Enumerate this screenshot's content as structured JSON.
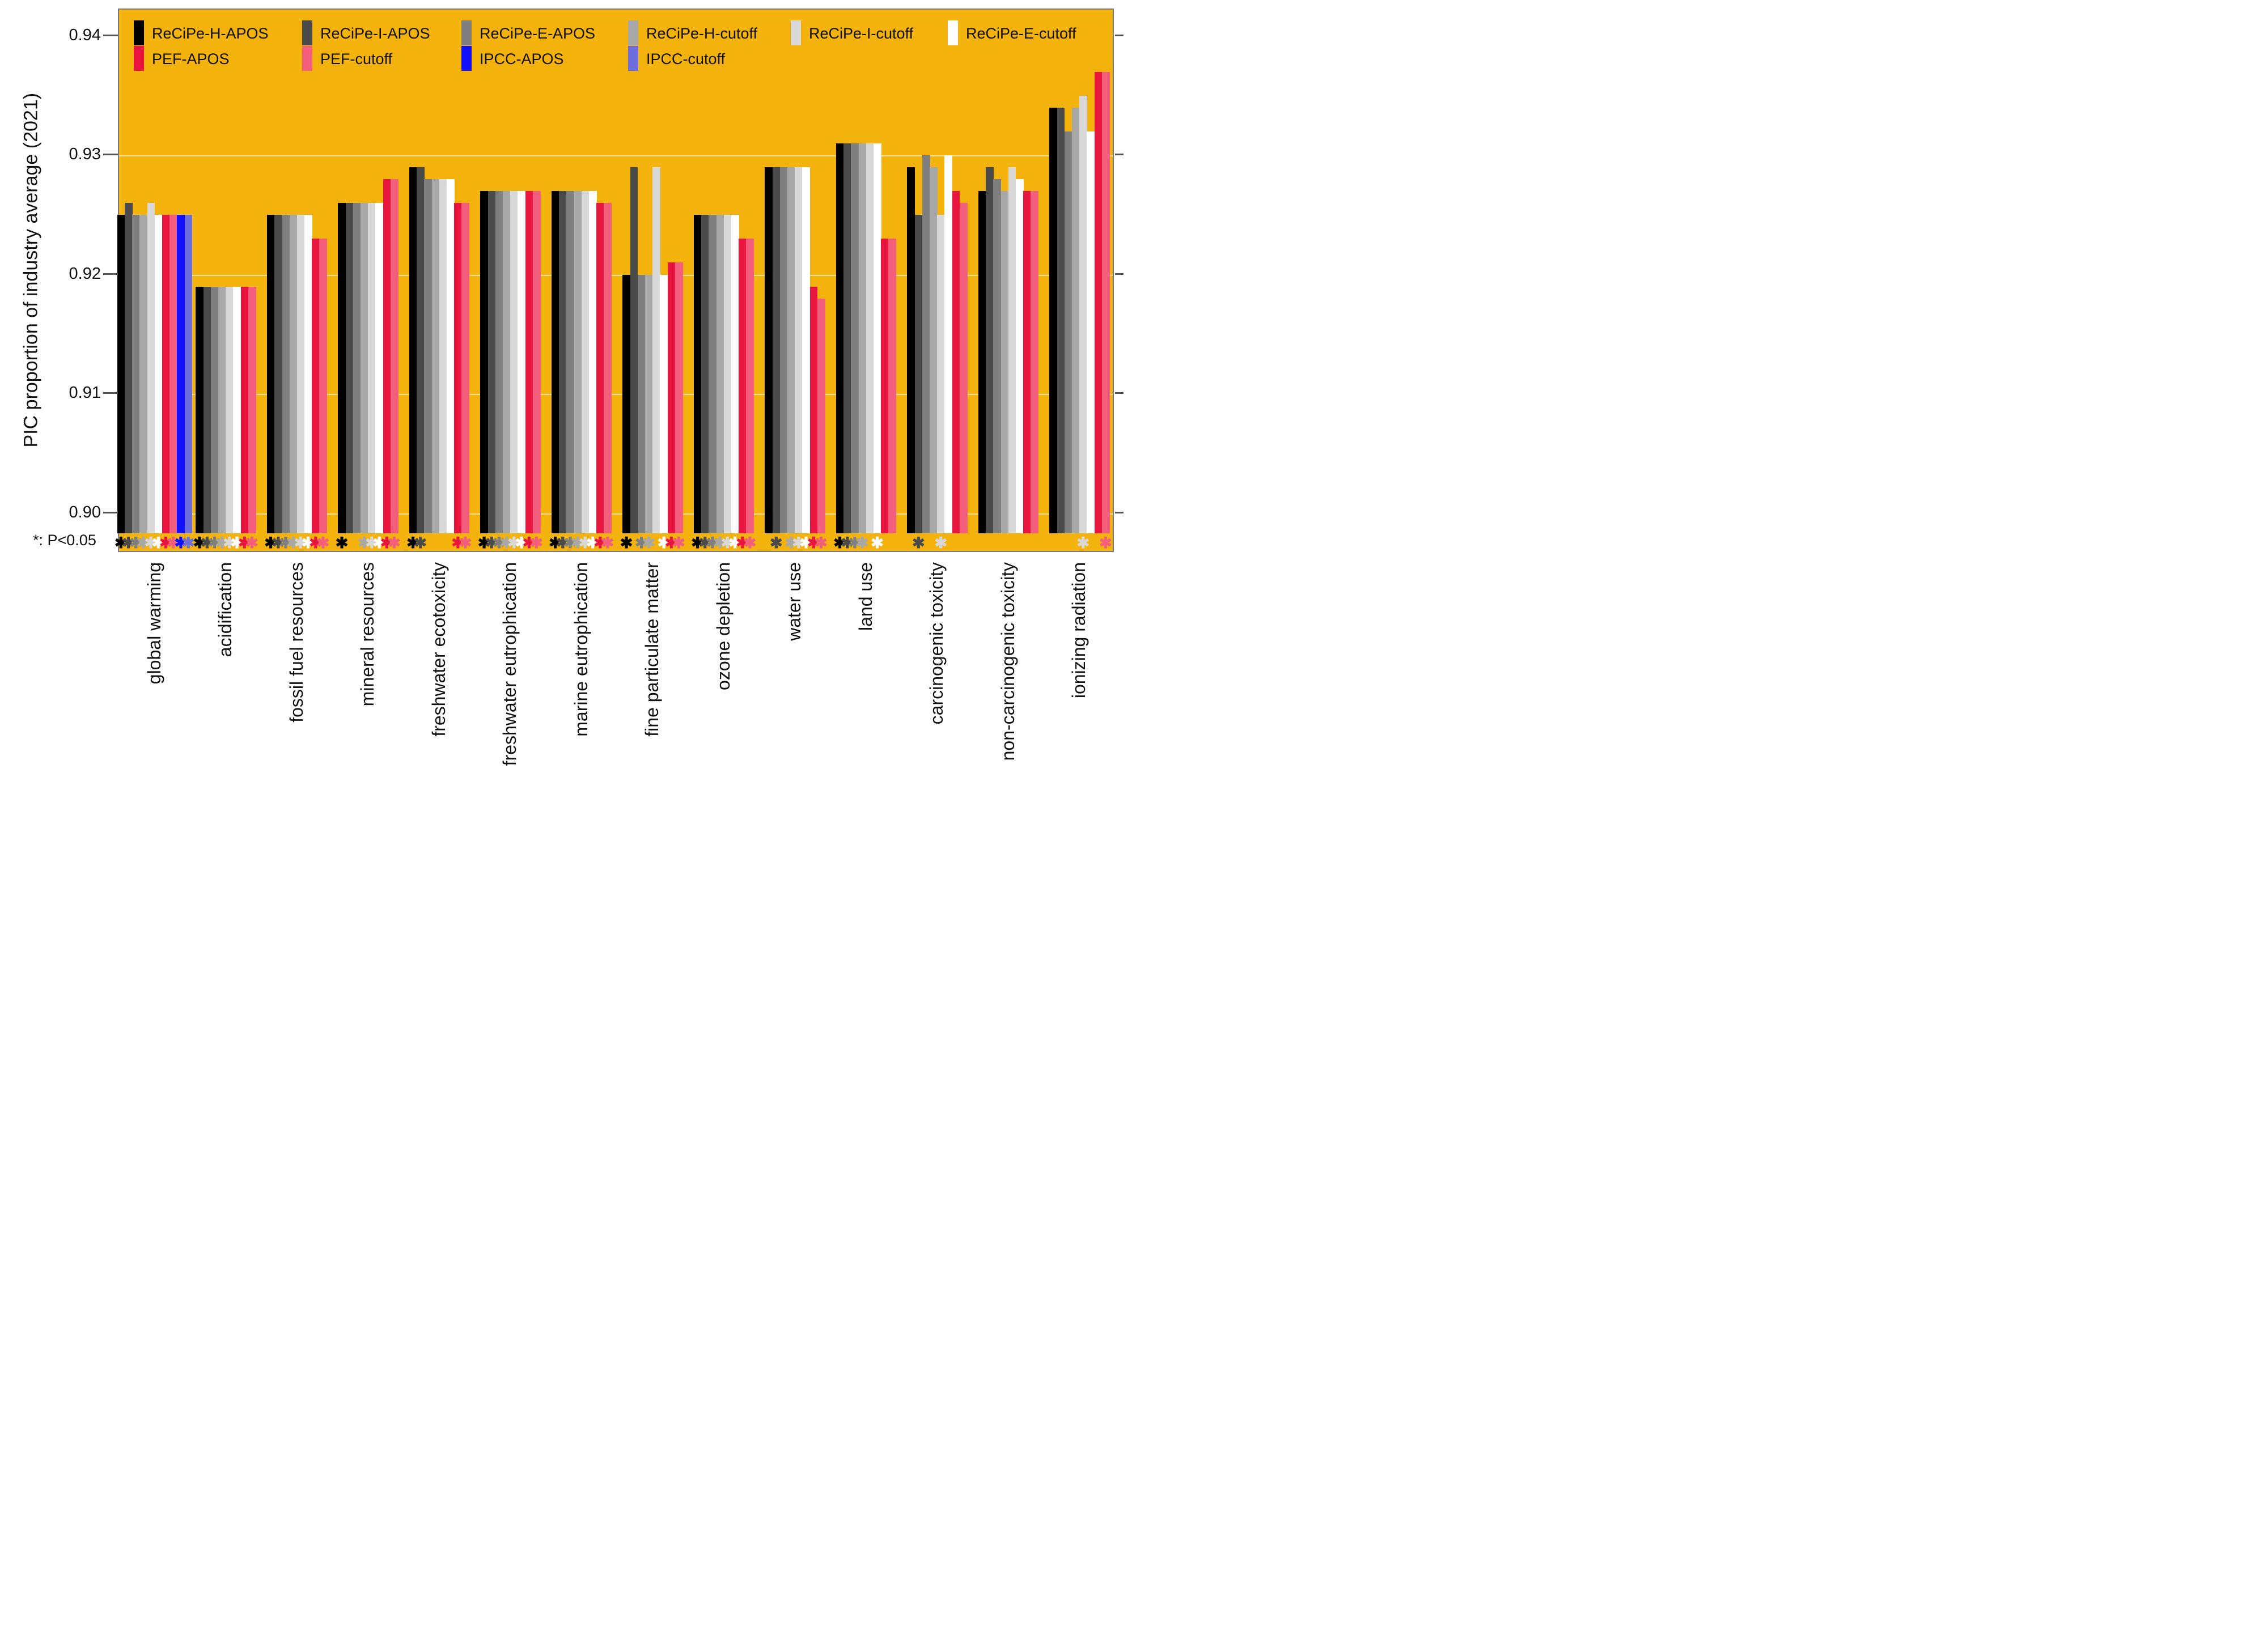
{
  "y_axis": {
    "label": "PIC proportion of industry average (2021)",
    "ticks": [
      "0.94",
      "0.93",
      "0.92",
      "0.91",
      "0.90"
    ],
    "tick_values": [
      0.94,
      0.93,
      0.92,
      0.91,
      0.9
    ]
  },
  "sig_note": "*: P<0.05",
  "colors": {
    "plot_background": "#f4b20c",
    "border": "#7a7a7a",
    "gridline": "rgba(255,255,255,0.6)"
  },
  "legend": [
    {
      "key": "H",
      "label": "ReCiPe-H-APOS",
      "color": "#000000",
      "row": 0,
      "col": 0
    },
    {
      "key": "I",
      "label": "ReCiPe-I-APOS",
      "color": "#4a4a4a",
      "row": 0,
      "col": 1
    },
    {
      "key": "E",
      "label": "ReCiPe-E-APOS",
      "color": "#7f7f7f",
      "row": 0,
      "col": 2
    },
    {
      "key": "Hc",
      "label": "ReCiPe-H-cutoff",
      "color": "#a8a8a8",
      "row": 0,
      "col": 3
    },
    {
      "key": "Ic",
      "label": "ReCiPe-I-cutoff",
      "color": "#d8d8d8",
      "row": 0,
      "col": 4
    },
    {
      "key": "Ec",
      "label": "ReCiPe-E-cutoff",
      "color": "#ffffff",
      "row": 0,
      "col": 5
    },
    {
      "key": "PEF",
      "label": "PEF-APOS",
      "color": "#e8153f",
      "row": 1,
      "col": 0
    },
    {
      "key": "PEFc",
      "label": "PEF-cutoff",
      "color": "#f25e7c",
      "row": 1,
      "col": 1
    },
    {
      "key": "IPCC",
      "label": "IPCC-APOS",
      "color": "#1111ff",
      "row": 1,
      "col": 2
    },
    {
      "key": "IPCCc",
      "label": "IPCC-cutoff",
      "color": "#6c6cdd",
      "row": 1,
      "col": 3
    }
  ],
  "chart_data": {
    "type": "bar",
    "title": "",
    "xlabel": "",
    "ylabel": "PIC proportion of industry average (2021)",
    "ylim": [
      0.898,
      0.941
    ],
    "grid": "horizontal",
    "legend_position": "top-inside",
    "categories": [
      "global warming",
      "acidification",
      "fossil fuel resources",
      "mineral resources",
      "freshwater ecotoxicity",
      "freshwater eutrophication",
      "marine eutrophication",
      "fine particulate matter",
      "ozone depletion",
      "water use",
      "land use",
      "carcinogenic toxicity",
      "non-carcinogenic toxicity",
      "ionizing radiation"
    ],
    "series": [
      {
        "name": "ReCiPe-H-APOS",
        "key": "H",
        "values": [
          0.925,
          0.919,
          0.925,
          0.926,
          0.929,
          0.927,
          0.927,
          0.92,
          0.925,
          0.929,
          0.931,
          0.929,
          0.927,
          0.934
        ]
      },
      {
        "name": "ReCiPe-I-APOS",
        "key": "I",
        "values": [
          0.926,
          0.919,
          0.925,
          0.926,
          0.929,
          0.927,
          0.927,
          0.929,
          0.925,
          0.929,
          0.931,
          0.925,
          0.929,
          0.934
        ]
      },
      {
        "name": "ReCiPe-E-APOS",
        "key": "E",
        "values": [
          0.925,
          0.919,
          0.925,
          0.926,
          0.928,
          0.927,
          0.927,
          0.92,
          0.925,
          0.929,
          0.931,
          0.93,
          0.928,
          0.932
        ]
      },
      {
        "name": "ReCiPe-H-cutoff",
        "key": "Hc",
        "values": [
          0.925,
          0.919,
          0.925,
          0.926,
          0.928,
          0.927,
          0.927,
          0.92,
          0.925,
          0.929,
          0.931,
          0.929,
          0.927,
          0.934
        ]
      },
      {
        "name": "ReCiPe-I-cutoff",
        "key": "Ic",
        "values": [
          0.926,
          0.919,
          0.925,
          0.926,
          0.928,
          0.927,
          0.927,
          0.929,
          0.925,
          0.929,
          0.931,
          0.925,
          0.929,
          0.935
        ]
      },
      {
        "name": "ReCiPe-E-cutoff",
        "key": "Ec",
        "values": [
          0.925,
          0.919,
          0.925,
          0.926,
          0.928,
          0.927,
          0.927,
          0.92,
          0.925,
          0.929,
          0.931,
          0.93,
          0.928,
          0.932
        ]
      },
      {
        "name": "PEF-APOS",
        "key": "PEF",
        "values": [
          0.925,
          0.919,
          0.923,
          0.928,
          0.926,
          0.927,
          0.926,
          0.921,
          0.923,
          0.919,
          0.923,
          0.927,
          0.927,
          0.937
        ]
      },
      {
        "name": "PEF-cutoff",
        "key": "PEFc",
        "values": [
          0.925,
          0.919,
          0.923,
          0.928,
          0.926,
          0.927,
          0.926,
          0.921,
          0.923,
          0.918,
          0.923,
          0.926,
          0.927,
          0.937
        ]
      },
      {
        "name": "IPCC-APOS",
        "key": "IPCC",
        "values": [
          0.925,
          null,
          null,
          null,
          null,
          null,
          null,
          null,
          null,
          null,
          null,
          null,
          null,
          null
        ]
      },
      {
        "name": "IPCC-cutoff",
        "key": "IPCCc",
        "values": [
          0.925,
          null,
          null,
          null,
          null,
          null,
          null,
          null,
          null,
          null,
          null,
          null,
          null,
          null
        ]
      }
    ],
    "significant_series_per_category": [
      [
        "H",
        "I",
        "E",
        "Hc",
        "Ic",
        "Ec",
        "PEF",
        "PEFc",
        "IPCC",
        "IPCCc"
      ],
      [
        "H",
        "I",
        "E",
        "Hc",
        "Ic",
        "Ec",
        "PEF",
        "PEFc"
      ],
      [
        "H",
        "I",
        "E",
        "Hc",
        "Ic",
        "Ec",
        "PEF",
        "PEFc"
      ],
      [
        "H",
        "Hc",
        "Ic",
        "Ec",
        "PEF",
        "PEFc"
      ],
      [
        "H",
        "I",
        "PEF",
        "PEFc"
      ],
      [
        "H",
        "I",
        "E",
        "Hc",
        "Ic",
        "Ec",
        "PEF",
        "PEFc"
      ],
      [
        "H",
        "I",
        "E",
        "Hc",
        "Ic",
        "Ec",
        "PEF",
        "PEFc"
      ],
      [
        "H",
        "E",
        "Hc",
        "Ec",
        "PEF",
        "PEFc"
      ],
      [
        "H",
        "I",
        "E",
        "Hc",
        "Ic",
        "Ec",
        "PEF",
        "PEFc"
      ],
      [
        "I",
        "Hc",
        "Ic",
        "Ec",
        "PEF",
        "PEFc"
      ],
      [
        "H",
        "I",
        "E",
        "Hc",
        "Ec"
      ],
      [
        "I",
        "Ic"
      ],
      [],
      [
        "Ic",
        "PEFc"
      ]
    ],
    "significance_marker": "✱"
  }
}
